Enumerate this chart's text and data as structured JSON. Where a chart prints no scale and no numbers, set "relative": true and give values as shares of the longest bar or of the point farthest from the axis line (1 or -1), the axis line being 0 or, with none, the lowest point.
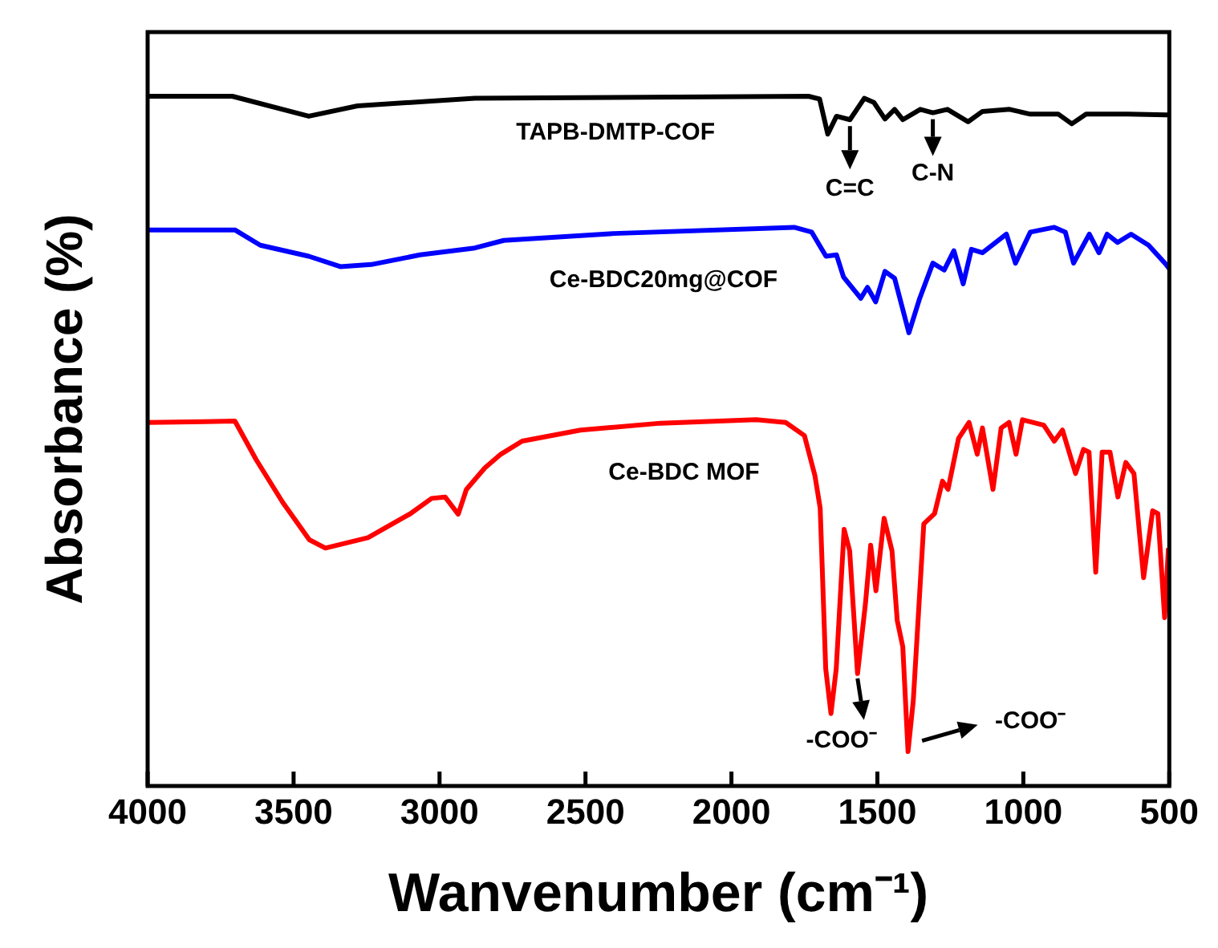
{
  "chart_data": {
    "type": "line",
    "xlabel": "Wanvenumber (cm⁻¹)",
    "ylabel": "Absorbance (%)",
    "relative": true,
    "xlim": [
      4000,
      500
    ],
    "xticks": [
      4000,
      3500,
      3000,
      2500,
      2000,
      1500,
      1000,
      500
    ],
    "grid": false,
    "legend": false,
    "marker": "none",
    "line_style": "solid",
    "annotations": [
      {
        "text": "C=C",
        "x": 1594,
        "y": 0.966
      },
      {
        "text": "C-N",
        "x": 1310,
        "y": 0.976
      },
      {
        "text": "-COO⁻",
        "x": 1568,
        "y": 0.163
      },
      "-COO⁻"
    ],
    "series": [
      {
        "name": "TAPB-DMTP-COF",
        "color": "#000000",
        "x": [
          4000,
          3710,
          3448,
          3281,
          2879,
          1736,
          1698,
          1670,
          1640,
          1594,
          1545,
          1512,
          1474,
          1441,
          1413,
          1353,
          1310,
          1260,
          1189,
          1140,
          1047,
          976,
          880,
          834,
          785,
          642,
          511,
          500
        ],
        "values": [
          1.0,
          1.0,
          0.971,
          0.986,
          0.997,
          1.0,
          0.996,
          0.945,
          0.971,
          0.966,
          0.997,
          0.991,
          0.967,
          0.981,
          0.966,
          0.981,
          0.976,
          0.981,
          0.963,
          0.978,
          0.981,
          0.974,
          0.974,
          0.96,
          0.974,
          0.974,
          0.973,
          0.973
        ]
      },
      {
        "name": "Ce-BDC20mg@COF",
        "color": "#0000ff",
        "x": [
          4000,
          3700,
          3614,
          3448,
          3340,
          3234,
          3067,
          2879,
          2780,
          2403,
          1785,
          1725,
          1676,
          1640,
          1616,
          1557,
          1534,
          1506,
          1474,
          1441,
          1392,
          1355,
          1310,
          1271,
          1238,
          1206,
          1178,
          1140,
          1058,
          1027,
          976,
          894,
          856,
          828,
          774,
          741,
          713,
          677,
          631,
          571,
          511,
          500
        ],
        "values": [
          0.806,
          0.806,
          0.784,
          0.768,
          0.753,
          0.756,
          0.77,
          0.78,
          0.791,
          0.801,
          0.81,
          0.803,
          0.768,
          0.77,
          0.738,
          0.707,
          0.723,
          0.702,
          0.746,
          0.736,
          0.657,
          0.707,
          0.758,
          0.748,
          0.776,
          0.728,
          0.778,
          0.773,
          0.8,
          0.758,
          0.803,
          0.81,
          0.803,
          0.758,
          0.8,
          0.773,
          0.8,
          0.788,
          0.8,
          0.784,
          0.756,
          0.75
        ]
      },
      {
        "name": "Ce-BDC MOF",
        "color": "#ff0000",
        "x": [
          4000,
          3701,
          3628,
          3537,
          3446,
          3391,
          3245,
          3099,
          3027,
          2981,
          2936,
          2908,
          2845,
          2790,
          2717,
          2517,
          2243,
          1915,
          1814,
          1750,
          1714,
          1696,
          1677,
          1659,
          1641,
          1614,
          1595,
          1568,
          1541,
          1523,
          1505,
          1477,
          1450,
          1432,
          1413,
          1395,
          1377,
          1341,
          1304,
          1277,
          1258,
          1222,
          1186,
          1158,
          1140,
          1104,
          1076,
          1049,
          1025,
          1003,
          930,
          894,
          866,
          821,
          794,
          775,
          752,
          730,
          703,
          676,
          649,
          621,
          588,
          557,
          539,
          516,
          503
        ],
        "values": [
          0.527,
          0.529,
          0.473,
          0.411,
          0.357,
          0.345,
          0.36,
          0.395,
          0.417,
          0.419,
          0.394,
          0.43,
          0.461,
          0.481,
          0.5,
          0.516,
          0.526,
          0.531,
          0.527,
          0.508,
          0.45,
          0.403,
          0.17,
          0.105,
          0.17,
          0.372,
          0.341,
          0.163,
          0.264,
          0.349,
          0.283,
          0.388,
          0.341,
          0.24,
          0.202,
          0.05,
          0.124,
          0.38,
          0.395,
          0.442,
          0.43,
          0.504,
          0.527,
          0.481,
          0.519,
          0.43,
          0.519,
          0.527,
          0.481,
          0.531,
          0.523,
          0.5,
          0.516,
          0.453,
          0.488,
          0.484,
          0.31,
          0.484,
          0.484,
          0.419,
          0.469,
          0.453,
          0.302,
          0.399,
          0.395,
          0.244,
          0.345
        ]
      }
    ]
  }
}
